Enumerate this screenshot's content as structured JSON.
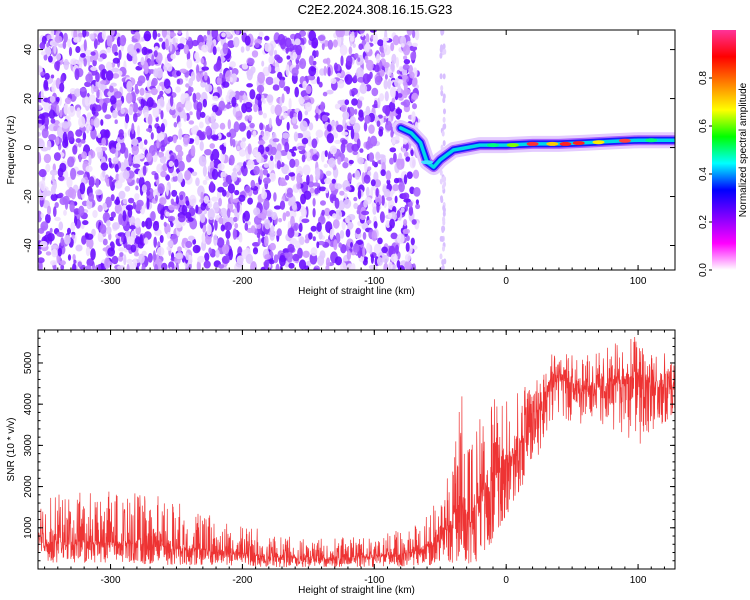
{
  "title": "C2E2.2024.308.16.15.G23",
  "chart_data": [
    {
      "type": "heatmap",
      "xlabel": "Height of straight line (km)",
      "ylabel": "Frequency (Hz)",
      "xlim": [
        -355,
        128
      ],
      "ylim": [
        -50,
        48
      ],
      "xticks": [
        -300,
        -200,
        -100,
        0,
        100
      ],
      "xtick_labels": [
        "-300",
        "-200",
        "-100",
        "0",
        "100"
      ],
      "yticks": [
        -40,
        -20,
        0,
        20,
        40
      ],
      "ytick_labels": [
        "-40",
        "-20",
        "0",
        "20",
        "40"
      ],
      "noise_region_x": [
        -355,
        -75
      ],
      "gap_x": [
        -75,
        -50
      ],
      "signal_trace": [
        {
          "x": -80,
          "y": 8
        },
        {
          "x": -72,
          "y": 6
        },
        {
          "x": -65,
          "y": 2
        },
        {
          "x": -60,
          "y": -6
        },
        {
          "x": -55,
          "y": -8
        },
        {
          "x": -50,
          "y": -5
        },
        {
          "x": -45,
          "y": -3
        },
        {
          "x": -40,
          "y": -1
        },
        {
          "x": -30,
          "y": 0
        },
        {
          "x": -20,
          "y": 1
        },
        {
          "x": -10,
          "y": 1
        },
        {
          "x": 0,
          "y": 1
        },
        {
          "x": 20,
          "y": 1.5
        },
        {
          "x": 40,
          "y": 1.5
        },
        {
          "x": 60,
          "y": 2
        },
        {
          "x": 80,
          "y": 2.5
        },
        {
          "x": 100,
          "y": 3
        },
        {
          "x": 128,
          "y": 3
        }
      ],
      "colorbar": {
        "label": "Normalized spectral amplitude",
        "ticks": [
          0.0,
          0.2,
          0.4,
          0.6,
          0.8
        ],
        "tick_labels": [
          "0.0",
          "0.2",
          "0.4",
          "0.6",
          "0.8"
        ],
        "range": [
          0,
          1
        ],
        "colors": [
          "#ffffff",
          "#ff00ff",
          "#8000ff",
          "#0000ff",
          "#00ffff",
          "#00ff00",
          "#ffff00",
          "#ff8000",
          "#ff0000",
          "#ff3399"
        ]
      },
      "grid": true
    },
    {
      "type": "line",
      "xlabel": "Height of straight line (km)",
      "ylabel": "SNR (10 * v/v)",
      "xlim": [
        -355,
        128
      ],
      "ylim": [
        0,
        5800
      ],
      "xticks": [
        -300,
        -200,
        -100,
        0,
        100
      ],
      "xtick_labels": [
        "-300",
        "-200",
        "-100",
        "0",
        "100"
      ],
      "yticks": [
        1000,
        2000,
        3000,
        4000,
        5000
      ],
      "ytick_labels": [
        "1000",
        "2000",
        "3000",
        "4000",
        "5000"
      ],
      "color": "#ee3333",
      "envelope": [
        {
          "x": -355,
          "low": 150,
          "mean": 650,
          "high": 1800
        },
        {
          "x": -300,
          "low": 150,
          "mean": 650,
          "high": 1900
        },
        {
          "x": -260,
          "low": 100,
          "mean": 580,
          "high": 1800
        },
        {
          "x": -220,
          "low": 80,
          "mean": 420,
          "high": 1300
        },
        {
          "x": -180,
          "low": 50,
          "mean": 300,
          "high": 900
        },
        {
          "x": -150,
          "low": 30,
          "mean": 250,
          "high": 700
        },
        {
          "x": -120,
          "low": 40,
          "mean": 280,
          "high": 800
        },
        {
          "x": -90,
          "low": 50,
          "mean": 320,
          "high": 900
        },
        {
          "x": -70,
          "low": 50,
          "mean": 420,
          "high": 1100
        },
        {
          "x": -50,
          "low": 80,
          "mean": 700,
          "high": 1700
        },
        {
          "x": -40,
          "low": 100,
          "mean": 1300,
          "high": 3500
        },
        {
          "x": -33,
          "low": 100,
          "mean": 1700,
          "high": 4600
        },
        {
          "x": -28,
          "low": 50,
          "mean": 1100,
          "high": 3000
        },
        {
          "x": -18,
          "low": 200,
          "mean": 1900,
          "high": 4000
        },
        {
          "x": -5,
          "low": 1000,
          "mean": 2400,
          "high": 4200
        },
        {
          "x": 10,
          "low": 1800,
          "mean": 3000,
          "high": 4300
        },
        {
          "x": 25,
          "low": 2800,
          "mean": 3900,
          "high": 5000
        },
        {
          "x": 35,
          "low": 3600,
          "mean": 4800,
          "high": 5400
        },
        {
          "x": 50,
          "low": 3500,
          "mean": 4500,
          "high": 5200
        },
        {
          "x": 70,
          "low": 3500,
          "mean": 4400,
          "high": 5300
        },
        {
          "x": 90,
          "low": 3200,
          "mean": 4600,
          "high": 5600
        },
        {
          "x": 100,
          "low": 3000,
          "mean": 4700,
          "high": 5800
        },
        {
          "x": 115,
          "low": 3400,
          "mean": 4400,
          "high": 5300
        },
        {
          "x": 128,
          "low": 3700,
          "mean": 4400,
          "high": 5200
        }
      ],
      "grid": true
    }
  ]
}
